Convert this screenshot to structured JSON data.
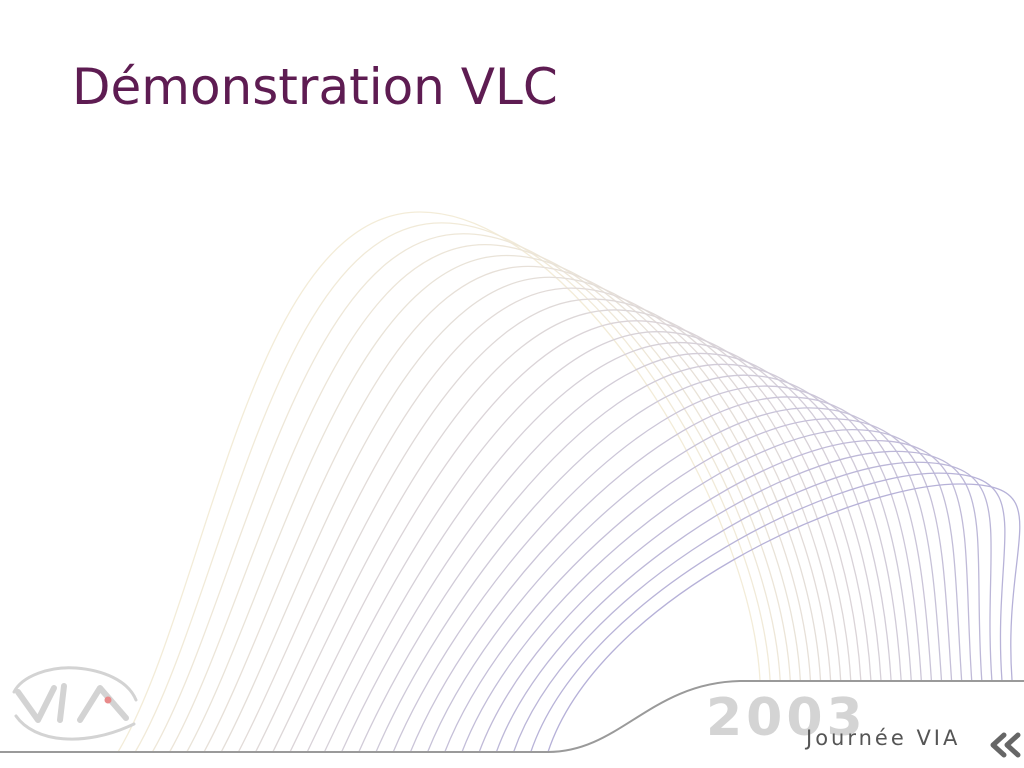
{
  "slide": {
    "title": "Démonstration VLC"
  },
  "footer": {
    "year": "2003",
    "event": "Journée VIA"
  },
  "colors": {
    "title": "#5e1c52",
    "wave_start": "#f3ecd8",
    "wave_end": "#b6b1d8",
    "baseline": "#9a9a9a",
    "year": "#d4d4d4",
    "event": "#555555",
    "logo_accent": "#e88a8a"
  },
  "icons": {
    "logo": "via-logo",
    "nav": "double-chevron-left-icon"
  }
}
